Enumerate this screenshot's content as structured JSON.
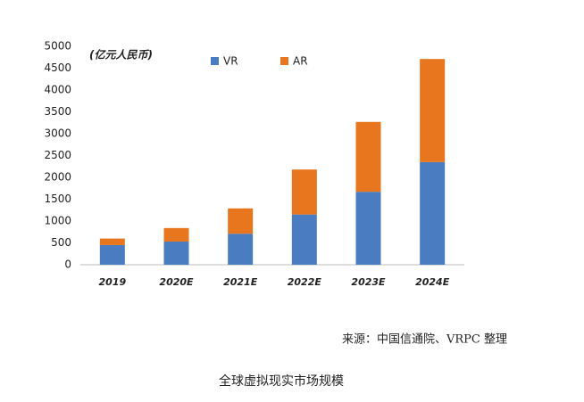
{
  "chart_data": {
    "type": "stacked-bar",
    "unit_label": "(亿元人民币)",
    "categories": [
      "2019",
      "2020E",
      "2021E",
      "2022E",
      "2023E",
      "2024E"
    ],
    "series": [
      {
        "name": "VR",
        "color": "#4a7cc1",
        "values": [
          450,
          530,
          710,
          1150,
          1670,
          2350
        ]
      },
      {
        "name": "AR",
        "color": "#e8761e",
        "values": [
          150,
          310,
          580,
          1030,
          1600,
          2360
        ]
      }
    ],
    "ylim": [
      0,
      5000
    ],
    "yticks": [
      0,
      500,
      1000,
      1500,
      2000,
      2500,
      3000,
      3500,
      4000,
      4500,
      5000
    ],
    "source": "来源：中国信通院、VRPC 整理",
    "title": "全球虚拟现实市场规模"
  }
}
